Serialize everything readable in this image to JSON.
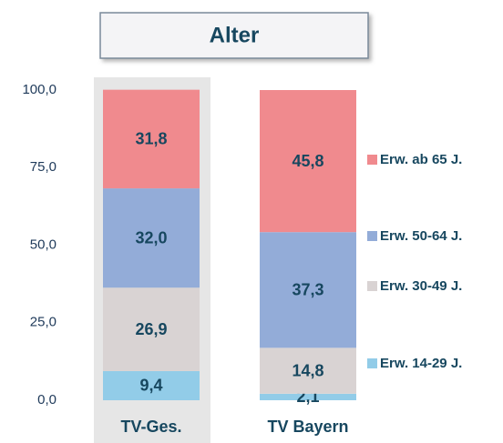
{
  "chart_data": {
    "type": "stacked-bar",
    "title": "Alter",
    "categories": [
      "TV-Ges.",
      "TV Bayern"
    ],
    "series": [
      {
        "name": "Erw. 14-29 J.",
        "color": "#92cce8",
        "values": [
          9.4,
          2.1
        ],
        "value_labels": [
          "9,4",
          "2,1"
        ]
      },
      {
        "name": "Erw. 30-49 J.",
        "color": "#d9d3d3",
        "values": [
          26.9,
          14.8
        ],
        "value_labels": [
          "26,9",
          "14,8"
        ]
      },
      {
        "name": "Erw. 50-64 J.",
        "color": "#93acd8",
        "values": [
          32.0,
          37.3
        ],
        "value_labels": [
          "32,0",
          "37,3"
        ]
      },
      {
        "name": "Erw. ab 65 J.",
        "color": "#f08a8e",
        "values": [
          31.8,
          45.8
        ],
        "value_labels": [
          "31,8",
          "45,8"
        ]
      }
    ],
    "ylim": [
      0,
      100
    ],
    "yticks": [
      {
        "value": 0,
        "label": "0,0"
      },
      {
        "value": 25,
        "label": "25,0"
      },
      {
        "value": 50,
        "label": "50,0"
      },
      {
        "value": 75,
        "label": "75,0"
      },
      {
        "value": 100,
        "label": "100,0"
      }
    ]
  }
}
